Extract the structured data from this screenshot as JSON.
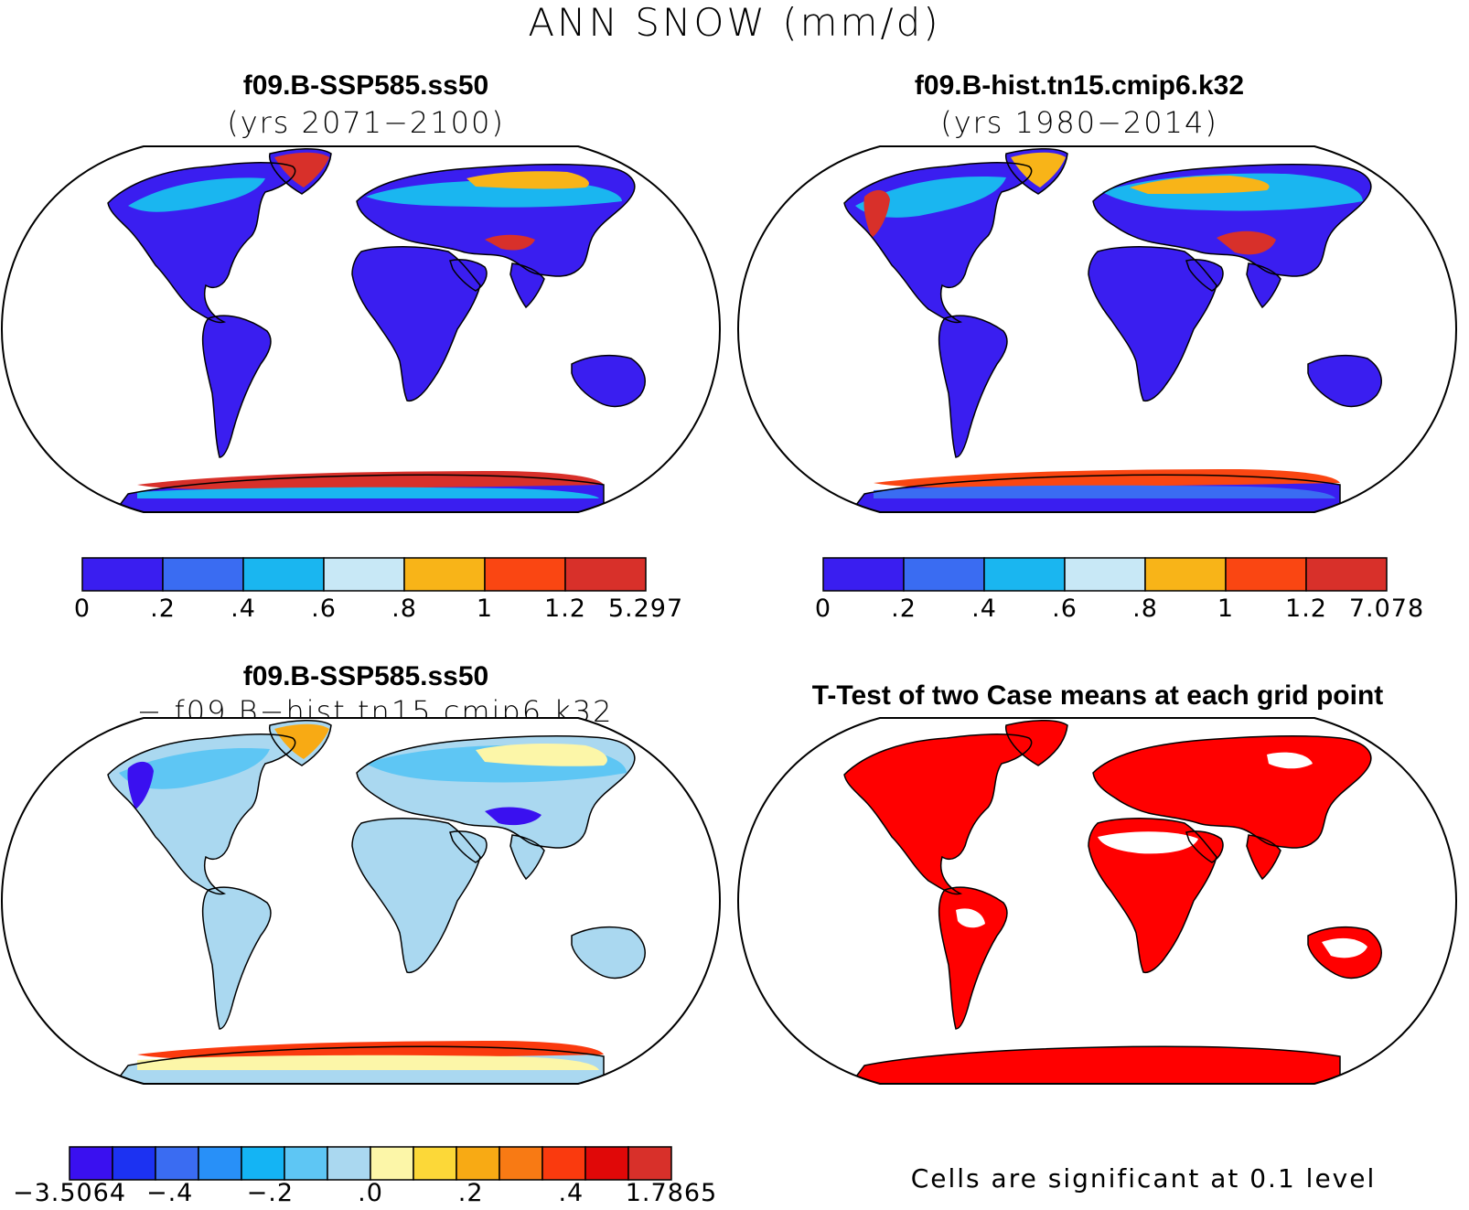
{
  "figure": {
    "title": "ANN SNOW (mm/d)"
  },
  "panels": {
    "top_left": {
      "case": "f09.B-SSP585.ss50",
      "years": "(yrs 2071−2100)",
      "colorbar": {
        "colors": [
          "#3a1ef0",
          "#3a6cf2",
          "#1ab6f0",
          "#c8e8f6",
          "#f8b418",
          "#fa4612",
          "#d8302a"
        ],
        "labels": [
          "0",
          ".2",
          ".4",
          ".6",
          ".8",
          "1",
          "1.2",
          "5.297"
        ]
      }
    },
    "top_right": {
      "case": "f09.B-hist.tn15.cmip6.k32",
      "years": "(yrs 1980−2014)",
      "colorbar": {
        "colors": [
          "#3a1ef0",
          "#3a6cf2",
          "#1ab6f0",
          "#c8e8f6",
          "#f8b418",
          "#fa4612",
          "#d8302a"
        ],
        "labels": [
          "0",
          ".2",
          ".4",
          ".6",
          ".8",
          "1",
          "1.2",
          "7.078"
        ]
      }
    },
    "bottom_left": {
      "case": "f09.B-SSP585.ss50",
      "minus_case": "− f09.B−hist.tn15.cmip6.k32",
      "colorbar": {
        "colors": [
          "#3a10f0",
          "#1c32f2",
          "#3a6cf2",
          "#2890f8",
          "#14b4f4",
          "#5ec6f4",
          "#aad8f0",
          "#fcf6a8",
          "#fcd838",
          "#f8aa14",
          "#f87a14",
          "#fa3a0e",
          "#e00808",
          "#d8302a"
        ],
        "labels": [
          "−3.5064",
          "−.4",
          "−.2",
          ".0",
          ".2",
          ".4",
          "1.7865"
        ]
      }
    },
    "bottom_right": {
      "title": "T-Test of two Case means at each grid point",
      "note": "Cells are significant at 0.1 level"
    }
  },
  "map_colors": {
    "ocean": "#ffffff",
    "outline": "#000000",
    "land_low_snow": "#3a1ef0",
    "diff_land": "#aad8f0",
    "significant": "#ff0000"
  }
}
